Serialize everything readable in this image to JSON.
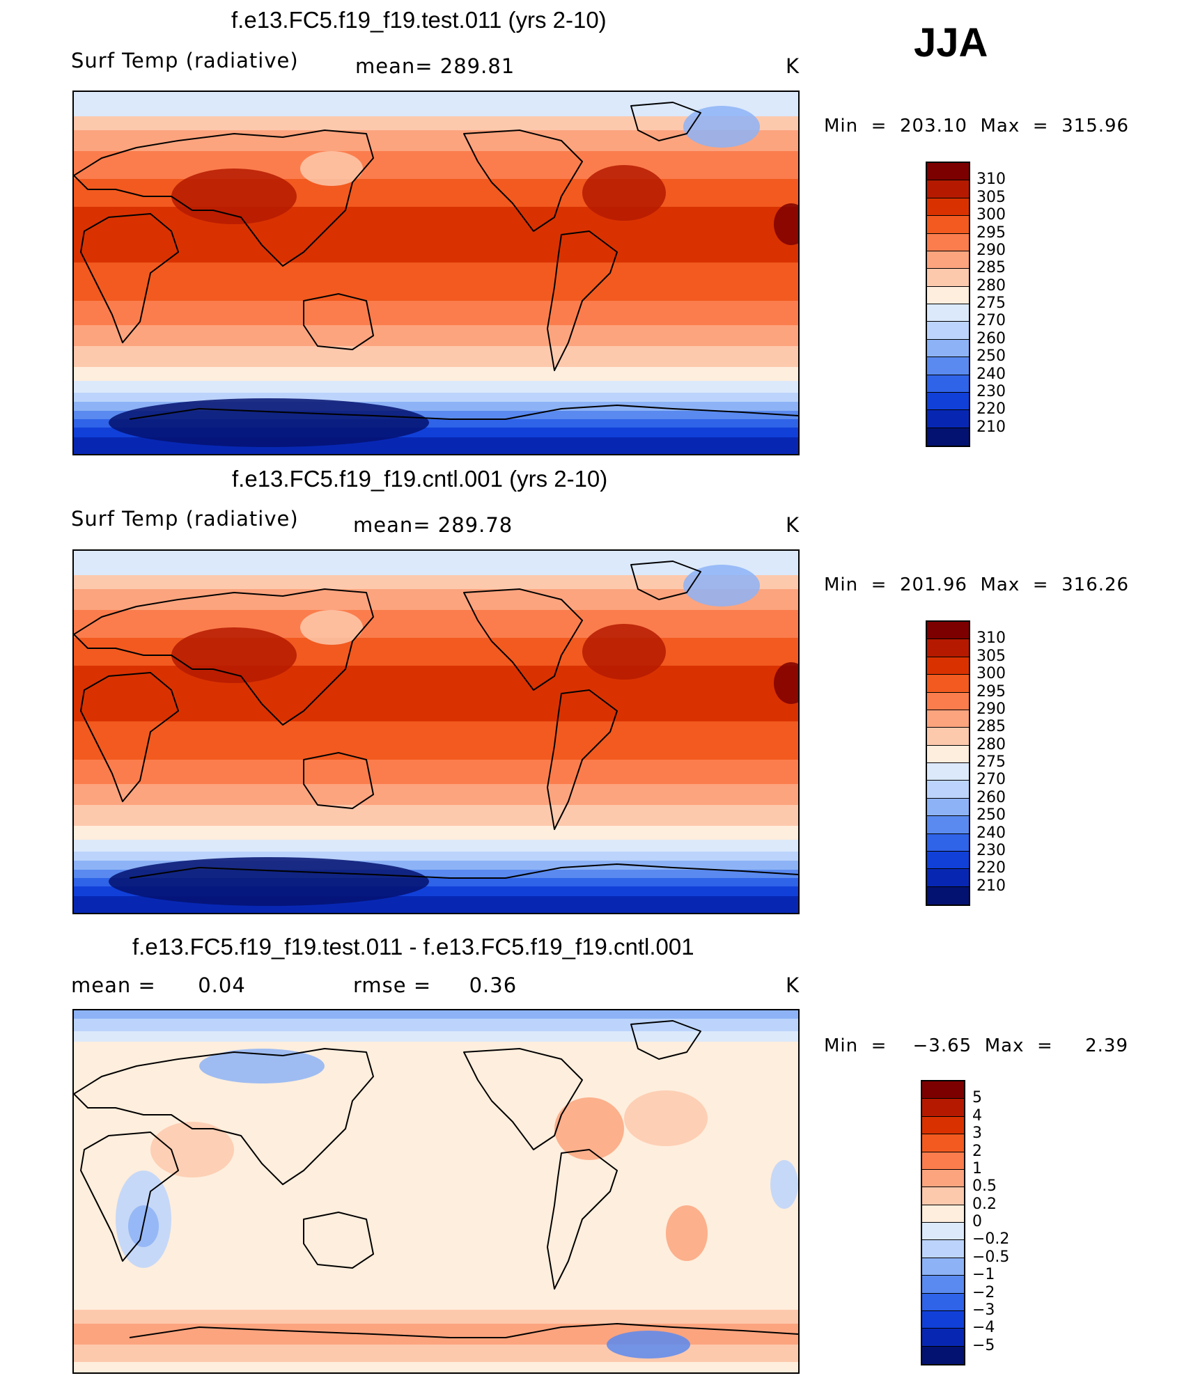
{
  "season": "JJA",
  "chart_data": [
    {
      "type": "heatmap",
      "title": "f.e13.FC5.f19_f19.test.011 (yrs 2-10)",
      "variable": "Surf Temp (radiative)",
      "stat_text": "mean= 289.81",
      "units": "K",
      "min_text": "203.10",
      "max_text": "315.96",
      "colorbar": {
        "levels": [
          "310",
          "305",
          "300",
          "295",
          "290",
          "285",
          "280",
          "275",
          "270",
          "260",
          "250",
          "240",
          "230",
          "220",
          "210"
        ],
        "colors": [
          "#7d0000",
          "#b51a00",
          "#d93200",
          "#f25a1f",
          "#fb7d4d",
          "#fca47e",
          "#fdc9ad",
          "#feeedd",
          "#dbe9fb",
          "#bcd4fb",
          "#8db3f6",
          "#5a8aef",
          "#2f63e8",
          "#1140d9",
          "#0727b3",
          "#031270"
        ]
      }
    },
    {
      "type": "heatmap",
      "title": "f.e13.FC5.f19_f19.cntl.001 (yrs 2-10)",
      "variable": "Surf Temp (radiative)",
      "stat_text": "mean= 289.78",
      "units": "K",
      "min_text": "201.96",
      "max_text": "316.26",
      "colorbar": {
        "levels": [
          "310",
          "305",
          "300",
          "295",
          "290",
          "285",
          "280",
          "275",
          "270",
          "260",
          "250",
          "240",
          "230",
          "220",
          "210"
        ],
        "colors": [
          "#7d0000",
          "#b51a00",
          "#d93200",
          "#f25a1f",
          "#fb7d4d",
          "#fca47e",
          "#fdc9ad",
          "#feeedd",
          "#dbe9fb",
          "#bcd4fb",
          "#8db3f6",
          "#5a8aef",
          "#2f63e8",
          "#1140d9",
          "#0727b3",
          "#031270"
        ]
      }
    },
    {
      "type": "heatmap",
      "title": "f.e13.FC5.f19_f19.test.011 - f.e13.FC5.f19_f19.cntl.001",
      "mean_label": "mean =",
      "mean_value": "0.04",
      "rmse_label": "rmse =",
      "rmse_value": "0.36",
      "units": "K",
      "min_text": "−3.65",
      "max_text": "2.39",
      "colorbar": {
        "levels": [
          "5",
          "4",
          "3",
          "2",
          "1",
          "0.5",
          "0.2",
          "0",
          "−0.2",
          "−0.5",
          "−1",
          "−2",
          "−3",
          "−4",
          "−5"
        ],
        "colors": [
          "#7d0000",
          "#b51a00",
          "#d93200",
          "#f25a1f",
          "#fb7d4d",
          "#fca47e",
          "#fdc9ad",
          "#feeedd",
          "#dbe9fb",
          "#bcd4fb",
          "#8db3f6",
          "#5a8aef",
          "#2f63e8",
          "#1140d9",
          "#0727b3",
          "#031270"
        ]
      }
    }
  ]
}
